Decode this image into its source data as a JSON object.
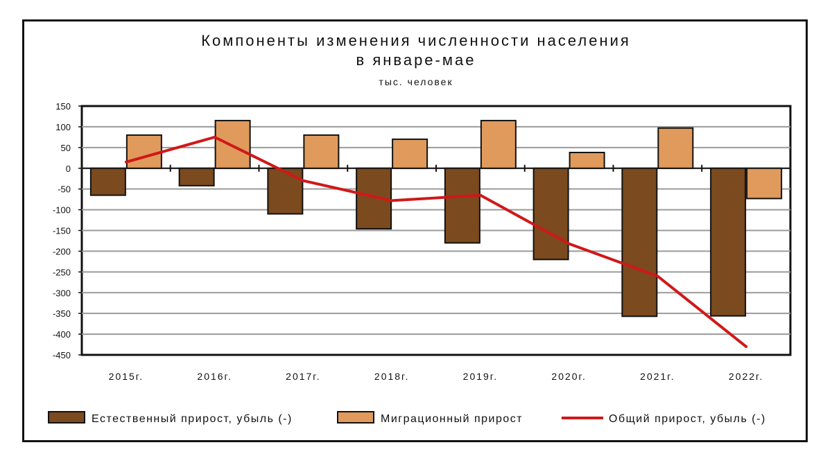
{
  "chart_data": {
    "type": "bar",
    "title_line1": "Компоненты изменения численности населения",
    "title_line2": "в январе-мае",
    "subtitle": "тыс. человек",
    "categories": [
      "2015г.",
      "2016г.",
      "2017г.",
      "2018г.",
      "2019г.",
      "2020г.",
      "2021г.",
      "2022г."
    ],
    "series": [
      {
        "name": "Естественный прирост, убыль (-)",
        "kind": "bar",
        "color": "#7b4a1e",
        "values": [
          -65,
          -42,
          -110,
          -146,
          -180,
          -220,
          -357,
          -356
        ]
      },
      {
        "name": "Миграционный прирост",
        "kind": "bar",
        "color": "#e09a5c",
        "values": [
          80,
          115,
          80,
          70,
          115,
          38,
          97,
          -73
        ]
      },
      {
        "name": "Общий прирост, убыль (-)",
        "kind": "line",
        "color": "#d01818",
        "values": [
          15,
          75,
          -30,
          -78,
          -65,
          -182,
          -260,
          -430
        ]
      }
    ],
    "ylim": [
      -450,
      150
    ],
    "yticks": [
      150,
      100,
      50,
      0,
      -50,
      -100,
      -150,
      -200,
      -250,
      -300,
      -350,
      -400,
      -450
    ],
    "grid": true,
    "legend_position": "bottom"
  }
}
